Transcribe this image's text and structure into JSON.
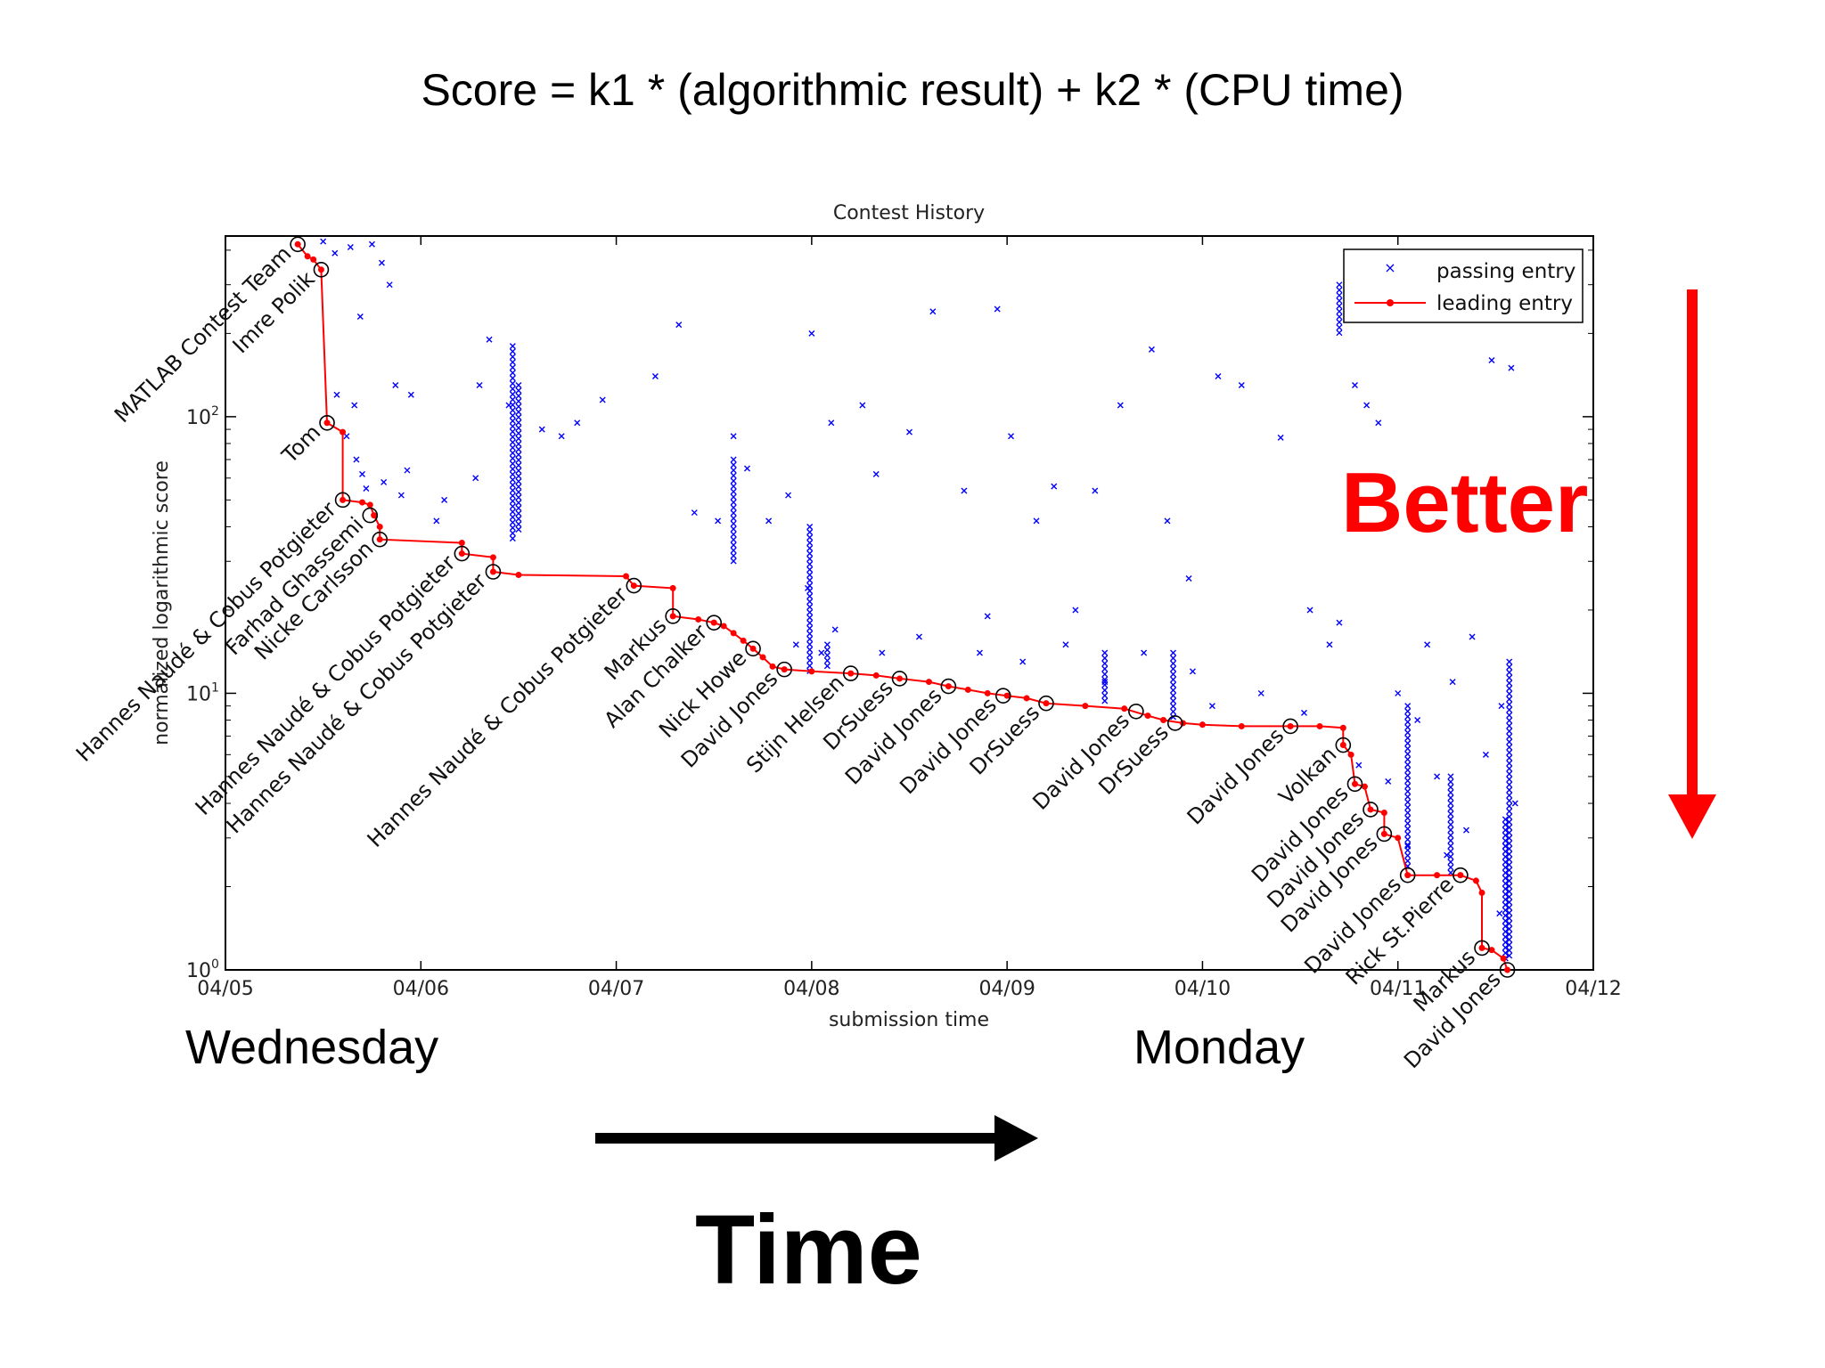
{
  "slide": {
    "title": "Score = k1 * (algorithmic result) + k2 * (CPU time)",
    "left_day": "Wednesday",
    "right_day": "Monday",
    "time_label": "Time",
    "better_label": "Better",
    "time_arrow_color": "#000000",
    "better_arrow_color": "#ff0000"
  },
  "chart_data": {
    "type": "scatter",
    "title": "Contest History",
    "xlabel": "submission time",
    "ylabel": "normalized logarithmic score",
    "x_tick_labels": [
      "04/05",
      "04/06",
      "04/07",
      "04/08",
      "04/09",
      "04/10",
      "04/11",
      "04/12"
    ],
    "xlim_days": [
      0,
      7
    ],
    "y_scale": "log",
    "ylim": [
      1,
      450
    ],
    "y_ticks": [
      {
        "value": 1,
        "base": "10",
        "exp": "0"
      },
      {
        "value": 10,
        "base": "10",
        "exp": "1"
      },
      {
        "value": 100,
        "base": "10",
        "exp": "2"
      }
    ],
    "legend": {
      "position": "top-right",
      "entries": [
        {
          "label": "passing entry",
          "marker": "x",
          "color": "#0000ff"
        },
        {
          "label": "leading entry",
          "marker": "line-dot",
          "color": "#ff0000"
        }
      ]
    },
    "series": [
      {
        "name": "leading entry",
        "color": "#ff0000",
        "points": [
          {
            "x": 0.37,
            "y": 420
          },
          {
            "x": 0.42,
            "y": 380
          },
          {
            "x": 0.45,
            "y": 370
          },
          {
            "x": 0.49,
            "y": 340
          },
          {
            "x": 0.52,
            "y": 95
          },
          {
            "x": 0.6,
            "y": 88
          },
          {
            "x": 0.6,
            "y": 50
          },
          {
            "x": 0.7,
            "y": 49
          },
          {
            "x": 0.74,
            "y": 48
          },
          {
            "x": 0.76,
            "y": 44
          },
          {
            "x": 0.79,
            "y": 40
          },
          {
            "x": 0.79,
            "y": 36
          },
          {
            "x": 1.21,
            "y": 35
          },
          {
            "x": 1.21,
            "y": 32
          },
          {
            "x": 1.37,
            "y": 31
          },
          {
            "x": 1.37,
            "y": 27.5
          },
          {
            "x": 1.5,
            "y": 26.8
          },
          {
            "x": 2.05,
            "y": 26.5
          },
          {
            "x": 2.09,
            "y": 24.5
          },
          {
            "x": 2.29,
            "y": 24
          },
          {
            "x": 2.29,
            "y": 19
          },
          {
            "x": 2.42,
            "y": 18.5
          },
          {
            "x": 2.5,
            "y": 18
          },
          {
            "x": 2.55,
            "y": 17.5
          },
          {
            "x": 2.6,
            "y": 16.5
          },
          {
            "x": 2.65,
            "y": 15.5
          },
          {
            "x": 2.7,
            "y": 14.5
          },
          {
            "x": 2.75,
            "y": 13.5
          },
          {
            "x": 2.8,
            "y": 12.5
          },
          {
            "x": 2.86,
            "y": 12.2
          },
          {
            "x": 3.0,
            "y": 12.0
          },
          {
            "x": 3.2,
            "y": 11.8
          },
          {
            "x": 3.33,
            "y": 11.6
          },
          {
            "x": 3.45,
            "y": 11.3
          },
          {
            "x": 3.6,
            "y": 11.0
          },
          {
            "x": 3.7,
            "y": 10.6
          },
          {
            "x": 3.8,
            "y": 10.3
          },
          {
            "x": 3.9,
            "y": 10.0
          },
          {
            "x": 4.0,
            "y": 9.8
          },
          {
            "x": 4.1,
            "y": 9.6
          },
          {
            "x": 4.2,
            "y": 9.2
          },
          {
            "x": 4.4,
            "y": 9.0
          },
          {
            "x": 4.6,
            "y": 8.8
          },
          {
            "x": 4.72,
            "y": 8.3
          },
          {
            "x": 4.8,
            "y": 8.0
          },
          {
            "x": 4.9,
            "y": 7.8
          },
          {
            "x": 5.0,
            "y": 7.7
          },
          {
            "x": 5.2,
            "y": 7.6
          },
          {
            "x": 5.45,
            "y": 7.6
          },
          {
            "x": 5.6,
            "y": 7.6
          },
          {
            "x": 5.72,
            "y": 7.5
          },
          {
            "x": 5.72,
            "y": 6.5
          },
          {
            "x": 5.76,
            "y": 6.0
          },
          {
            "x": 5.78,
            "y": 4.7
          },
          {
            "x": 5.83,
            "y": 4.6
          },
          {
            "x": 5.86,
            "y": 3.8
          },
          {
            "x": 5.93,
            "y": 3.7
          },
          {
            "x": 5.93,
            "y": 3.1
          },
          {
            "x": 6.0,
            "y": 3.0
          },
          {
            "x": 6.05,
            "y": 2.2
          },
          {
            "x": 6.2,
            "y": 2.2
          },
          {
            "x": 6.32,
            "y": 2.2
          },
          {
            "x": 6.4,
            "y": 2.1
          },
          {
            "x": 6.43,
            "y": 1.9
          },
          {
            "x": 6.43,
            "y": 1.2
          },
          {
            "x": 6.48,
            "y": 1.18
          },
          {
            "x": 6.54,
            "y": 1.1
          },
          {
            "x": 6.56,
            "y": 1.0
          }
        ]
      }
    ],
    "markers": [
      {
        "x": 0.37,
        "y": 420,
        "label": "MATLAB Contest Team"
      },
      {
        "x": 0.49,
        "y": 340,
        "label": "Imre Polik"
      },
      {
        "x": 0.52,
        "y": 95,
        "label": "Tom"
      },
      {
        "x": 0.6,
        "y": 50,
        "label": "Hannes Naudé & Cobus Potgieter"
      },
      {
        "x": 0.74,
        "y": 44,
        "label": "Farhad Ghassemi"
      },
      {
        "x": 0.79,
        "y": 36,
        "label": "Nicke Carlsson"
      },
      {
        "x": 1.21,
        "y": 32,
        "label": "Hannes Naudé & Cobus Potgieter"
      },
      {
        "x": 1.37,
        "y": 27.5,
        "label": "Hannes Naudé & Cobus Potgieter"
      },
      {
        "x": 2.09,
        "y": 24.5,
        "label": "Hannes Naudé & Cobus Potgieter"
      },
      {
        "x": 2.29,
        "y": 19,
        "label": "Markus"
      },
      {
        "x": 2.5,
        "y": 18,
        "label": "Alan Chalker"
      },
      {
        "x": 2.7,
        "y": 14.5,
        "label": "Nick Howe"
      },
      {
        "x": 2.86,
        "y": 12.2,
        "label": "David Jones"
      },
      {
        "x": 3.2,
        "y": 11.8,
        "label": "Stijn Helsen"
      },
      {
        "x": 3.45,
        "y": 11.3,
        "label": "DrSuess"
      },
      {
        "x": 3.7,
        "y": 10.6,
        "label": "David Jones"
      },
      {
        "x": 3.98,
        "y": 9.8,
        "label": "David Jones"
      },
      {
        "x": 4.2,
        "y": 9.2,
        "label": "DrSuess"
      },
      {
        "x": 4.66,
        "y": 8.6,
        "label": "David Jones"
      },
      {
        "x": 4.86,
        "y": 7.8,
        "label": "DrSuess"
      },
      {
        "x": 5.45,
        "y": 7.6,
        "label": "David Jones"
      },
      {
        "x": 5.72,
        "y": 6.5,
        "label": "Volkan"
      },
      {
        "x": 5.78,
        "y": 4.7,
        "label": "David Jones"
      },
      {
        "x": 5.86,
        "y": 3.8,
        "label": "David Jones"
      },
      {
        "x": 5.93,
        "y": 3.1,
        "label": "David Jones"
      },
      {
        "x": 6.05,
        "y": 2.2,
        "label": "David Jones"
      },
      {
        "x": 6.32,
        "y": 2.2,
        "label": "Rick St.Pierre"
      },
      {
        "x": 6.43,
        "y": 1.2,
        "label": "Markus"
      },
      {
        "x": 6.56,
        "y": 1.0,
        "label": "David Jones"
      }
    ],
    "passing_entries": [
      {
        "x": 0.5,
        "y": 430
      },
      {
        "x": 0.56,
        "y": 390
      },
      {
        "x": 0.64,
        "y": 410
      },
      {
        "x": 0.75,
        "y": 420
      },
      {
        "x": 0.8,
        "y": 360
      },
      {
        "x": 0.84,
        "y": 300
      },
      {
        "x": 0.87,
        "y": 130
      },
      {
        "x": 0.66,
        "y": 110
      },
      {
        "x": 0.69,
        "y": 230
      },
      {
        "x": 0.57,
        "y": 120
      },
      {
        "x": 0.62,
        "y": 85
      },
      {
        "x": 0.67,
        "y": 70
      },
      {
        "x": 0.7,
        "y": 62
      },
      {
        "x": 0.72,
        "y": 55
      },
      {
        "x": 0.81,
        "y": 58
      },
      {
        "x": 0.9,
        "y": 52
      },
      {
        "x": 0.93,
        "y": 64
      },
      {
        "x": 0.95,
        "y": 120
      },
      {
        "x": 1.08,
        "y": 42
      },
      {
        "x": 1.12,
        "y": 50
      },
      {
        "x": 1.28,
        "y": 60
      },
      {
        "x": 1.3,
        "y": 130
      },
      {
        "x": 1.35,
        "y": 190
      },
      {
        "x": 1.45,
        "y": 110
      },
      {
        "x": 1.62,
        "y": 90
      },
      {
        "x": 1.72,
        "y": 85
      },
      {
        "x": 1.8,
        "y": 95
      },
      {
        "x": 1.93,
        "y": 115
      },
      {
        "x": 2.2,
        "y": 140
      },
      {
        "x": 2.32,
        "y": 215
      },
      {
        "x": 2.4,
        "y": 45
      },
      {
        "x": 2.52,
        "y": 42
      },
      {
        "x": 2.6,
        "y": 85
      },
      {
        "x": 2.67,
        "y": 65
      },
      {
        "x": 2.78,
        "y": 42
      },
      {
        "x": 2.88,
        "y": 52
      },
      {
        "x": 3.0,
        "y": 200
      },
      {
        "x": 3.1,
        "y": 95
      },
      {
        "x": 3.26,
        "y": 110
      },
      {
        "x": 3.33,
        "y": 62
      },
      {
        "x": 3.5,
        "y": 88
      },
      {
        "x": 3.62,
        "y": 240
      },
      {
        "x": 3.78,
        "y": 54
      },
      {
        "x": 3.95,
        "y": 245
      },
      {
        "x": 4.02,
        "y": 85
      },
      {
        "x": 4.15,
        "y": 42
      },
      {
        "x": 4.24,
        "y": 56
      },
      {
        "x": 4.45,
        "y": 54
      },
      {
        "x": 4.58,
        "y": 110
      },
      {
        "x": 4.74,
        "y": 175
      },
      {
        "x": 4.82,
        "y": 42
      },
      {
        "x": 4.93,
        "y": 26
      },
      {
        "x": 5.08,
        "y": 140
      },
      {
        "x": 5.2,
        "y": 130
      },
      {
        "x": 5.4,
        "y": 84
      },
      {
        "x": 5.65,
        "y": 15
      },
      {
        "x": 5.78,
        "y": 130
      },
      {
        "x": 5.84,
        "y": 110
      },
      {
        "x": 5.9,
        "y": 95
      },
      {
        "x": 6.15,
        "y": 15
      },
      {
        "x": 6.28,
        "y": 11
      },
      {
        "x": 6.38,
        "y": 16
      },
      {
        "x": 6.48,
        "y": 160
      },
      {
        "x": 6.58,
        "y": 150
      },
      {
        "x": 6.53,
        "y": 9
      },
      {
        "x": 6.45,
        "y": 6
      },
      {
        "x": 6.6,
        "y": 4
      },
      {
        "x": 6.2,
        "y": 5
      },
      {
        "x": 6.1,
        "y": 8
      },
      {
        "x": 6.0,
        "y": 10
      },
      {
        "x": 5.52,
        "y": 8.5
      },
      {
        "x": 5.3,
        "y": 10
      },
      {
        "x": 5.05,
        "y": 9
      },
      {
        "x": 4.95,
        "y": 12
      },
      {
        "x": 4.7,
        "y": 14
      },
      {
        "x": 4.5,
        "y": 11
      },
      {
        "x": 4.3,
        "y": 15
      },
      {
        "x": 4.08,
        "y": 13
      },
      {
        "x": 3.86,
        "y": 14
      },
      {
        "x": 3.55,
        "y": 16
      },
      {
        "x": 3.36,
        "y": 14
      },
      {
        "x": 3.12,
        "y": 17
      },
      {
        "x": 2.92,
        "y": 15
      },
      {
        "x": 3.05,
        "y": 14
      },
      {
        "x": 2.98,
        "y": 24
      },
      {
        "x": 3.9,
        "y": 19
      },
      {
        "x": 4.35,
        "y": 20
      },
      {
        "x": 5.55,
        "y": 20
      },
      {
        "x": 5.7,
        "y": 18
      },
      {
        "x": 6.25,
        "y": 2.6
      },
      {
        "x": 6.52,
        "y": 1.6
      },
      {
        "x": 6.35,
        "y": 3.2
      },
      {
        "x": 6.55,
        "y": 2.8
      },
      {
        "x": 6.05,
        "y": 2.8
      },
      {
        "x": 5.95,
        "y": 4.8
      },
      {
        "x": 5.8,
        "y": 5.5
      }
    ],
    "passing_columns": [
      {
        "x": 1.47,
        "ymin": 35,
        "ymax": 180
      },
      {
        "x": 1.5,
        "ymin": 38,
        "ymax": 130
      },
      {
        "x": 2.6,
        "ymin": 30,
        "ymax": 70
      },
      {
        "x": 2.99,
        "ymin": 12,
        "ymax": 40
      },
      {
        "x": 3.08,
        "ymin": 12.5,
        "ymax": 15
      },
      {
        "x": 4.5,
        "ymin": 9,
        "ymax": 14
      },
      {
        "x": 4.85,
        "ymin": 8,
        "ymax": 14
      },
      {
        "x": 5.7,
        "ymin": 200,
        "ymax": 300
      },
      {
        "x": 6.05,
        "ymin": 2.3,
        "ymax": 9
      },
      {
        "x": 6.27,
        "ymin": 2.2,
        "ymax": 5
      },
      {
        "x": 6.55,
        "ymin": 1.1,
        "ymax": 3.5
      },
      {
        "x": 6.57,
        "ymin": 1.1,
        "ymax": 13
      }
    ]
  }
}
